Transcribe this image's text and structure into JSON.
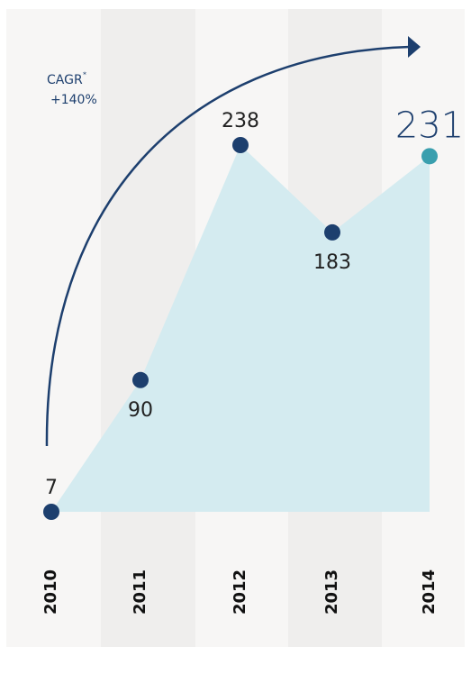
{
  "chart_data": {
    "type": "area",
    "categories": [
      "2010",
      "2011",
      "2012",
      "2013",
      "2014"
    ],
    "values": [
      7,
      90,
      238,
      183,
      231
    ],
    "point_colors": [
      "#1d3f6e",
      "#1d3f6e",
      "#1d3f6e",
      "#1d3f6e",
      "#3a9fae"
    ],
    "area_color": "#d4ebf0",
    "cagr_label": "CAGR",
    "cagr_mark": "*",
    "cagr_value": "+140%"
  }
}
